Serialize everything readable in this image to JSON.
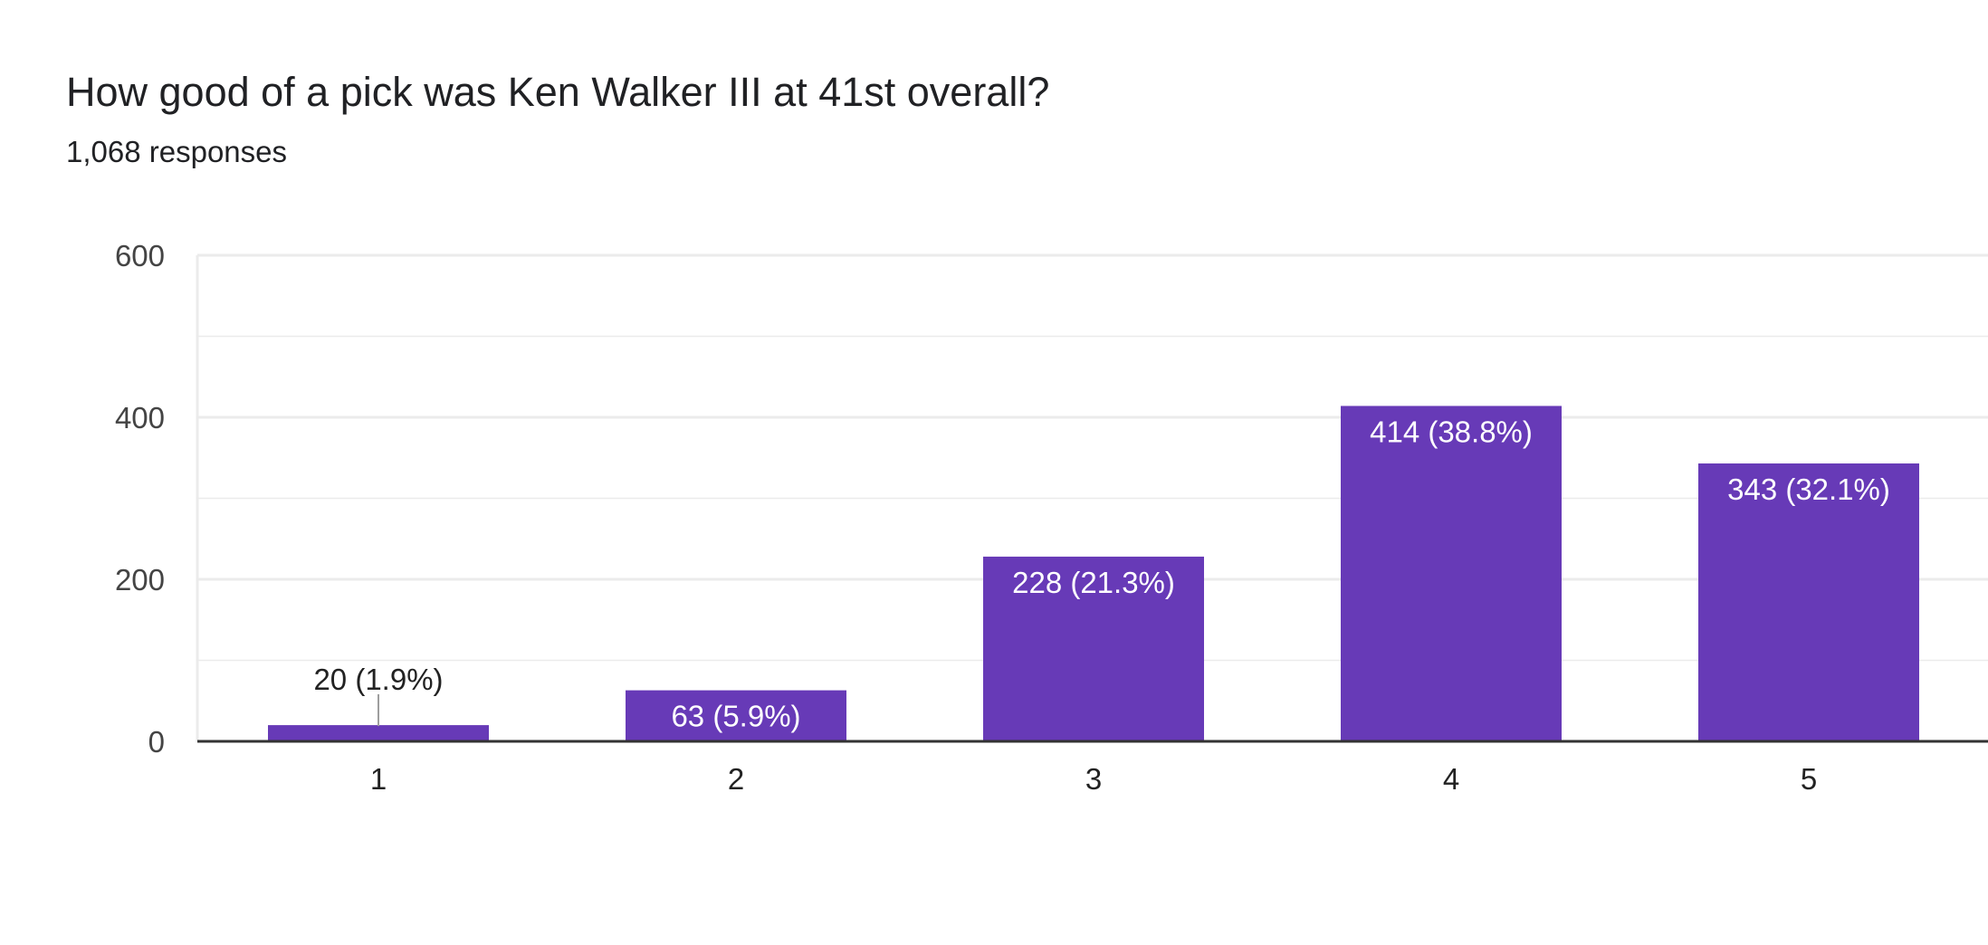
{
  "question": {
    "title": "How good of a pick was Ken Walker III at 41st overall?",
    "response_count": "1,068 responses"
  },
  "colors": {
    "bar": "#673ab7",
    "grid": "#ebebeb",
    "axis": "#333333",
    "leader": "#9e9e9e"
  },
  "chart_data": {
    "type": "bar",
    "title": "How good of a pick was Ken Walker III at 41st overall?",
    "subtitle": "1,068 responses",
    "categories": [
      "1",
      "2",
      "3",
      "4",
      "5"
    ],
    "values": [
      20,
      63,
      228,
      414,
      343
    ],
    "data_labels": [
      "20 (1.9%)",
      "63 (5.9%)",
      "228 (21.3%)",
      "414 (38.8%)",
      "343 (32.1%)"
    ],
    "yticks": [
      0,
      200,
      400,
      600
    ],
    "ylim": [
      0,
      600
    ],
    "xlabel": "",
    "ylabel": "",
    "grid": true,
    "legend": "none"
  }
}
